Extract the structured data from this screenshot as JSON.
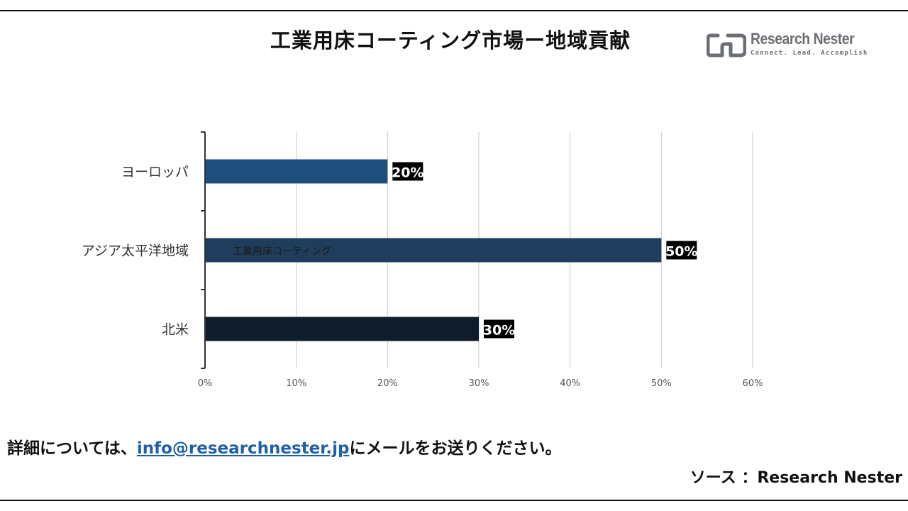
{
  "title": "工業用床コーティング市場ー地域貢献",
  "logo": {
    "name": "Research Nester",
    "tagline": "Connect. Lead. Accomplish"
  },
  "chart_data": {
    "type": "bar",
    "orientation": "horizontal",
    "categories": [
      "ヨーロッパ",
      "アジア太平洋地域",
      "北米"
    ],
    "values": [
      20,
      50,
      30
    ],
    "data_labels": [
      "20%",
      "50%",
      "30%"
    ],
    "bar_colors": [
      "#1f4e7d",
      "#1f3d5c",
      "#0e1c2b"
    ],
    "xlim": [
      0,
      60
    ],
    "xticks": [
      "0%",
      "10%",
      "20%",
      "30%",
      "40%",
      "50%",
      "60%"
    ],
    "grid": true,
    "annotation": "工業用床コーティング"
  },
  "footer": {
    "prefix": "詳細については、",
    "email": "info@researchnester.jp",
    "suffix": "にメールをお送りください。"
  },
  "source": "ソース ：Research Nester"
}
